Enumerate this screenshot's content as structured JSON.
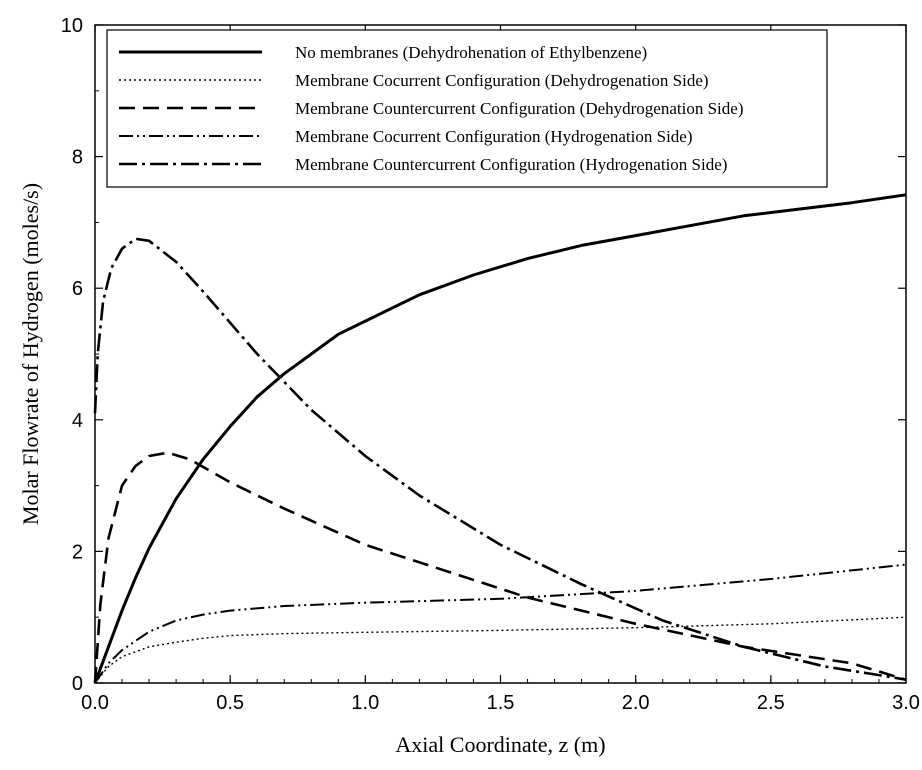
{
  "chart_data": {
    "type": "line",
    "xlabel": "Axial Coordinate, z (m)",
    "ylabel": "Molar Flowrate of Hydrogen (moles/s)",
    "xlim": [
      0,
      3
    ],
    "ylim": [
      0,
      10
    ],
    "x_ticks": [
      "0.0",
      "0.5",
      "1.0",
      "1.5",
      "2.0",
      "2.5",
      "3.0"
    ],
    "y_ticks": [
      "0",
      "2",
      "4",
      "6",
      "8",
      "10"
    ],
    "grid": false,
    "legend_position": "top",
    "series": [
      {
        "name": "No membranes (Dehydrohenation of Ethylbenzene)",
        "style": "solid",
        "x": [
          0,
          0.05,
          0.1,
          0.15,
          0.2,
          0.3,
          0.4,
          0.5,
          0.6,
          0.7,
          0.8,
          0.9,
          1.0,
          1.2,
          1.4,
          1.6,
          1.8,
          2.0,
          2.2,
          2.4,
          2.6,
          2.8,
          3.0
        ],
        "y": [
          0,
          0.55,
          1.1,
          1.6,
          2.05,
          2.8,
          3.4,
          3.9,
          4.35,
          4.7,
          5.0,
          5.3,
          5.5,
          5.9,
          6.2,
          6.45,
          6.65,
          6.8,
          6.95,
          7.1,
          7.2,
          7.3,
          7.42
        ]
      },
      {
        "name": "Membrane Cocurrent Configuration (Dehydrogenation Side)",
        "style": "dotted",
        "x": [
          0,
          0.05,
          0.1,
          0.2,
          0.3,
          0.4,
          0.5,
          0.7,
          1.0,
          1.5,
          2.0,
          2.5,
          3.0
        ],
        "y": [
          0,
          0.25,
          0.4,
          0.55,
          0.62,
          0.68,
          0.72,
          0.75,
          0.77,
          0.8,
          0.84,
          0.9,
          1.0
        ]
      },
      {
        "name": "Membrane Countercurrent Configuration (Dehydrogenation Side)",
        "style": "dashed",
        "x": [
          0,
          0.02,
          0.05,
          0.1,
          0.15,
          0.2,
          0.27,
          0.35,
          0.5,
          0.7,
          1.0,
          1.3,
          1.6,
          2.0,
          2.4,
          2.8,
          3.0
        ],
        "y": [
          0,
          1.2,
          2.2,
          3.0,
          3.3,
          3.45,
          3.5,
          3.4,
          3.05,
          2.65,
          2.1,
          1.7,
          1.3,
          0.9,
          0.55,
          0.3,
          0.05
        ]
      },
      {
        "name": "Membrane Cocurrent Configuration (Hydrogenation Side)",
        "style": "dash-dot-dot",
        "x": [
          0,
          0.05,
          0.1,
          0.2,
          0.3,
          0.4,
          0.5,
          0.7,
          1.0,
          1.5,
          2.0,
          2.5,
          3.0
        ],
        "y": [
          0,
          0.3,
          0.5,
          0.78,
          0.95,
          1.04,
          1.1,
          1.17,
          1.22,
          1.28,
          1.4,
          1.58,
          1.8
        ]
      },
      {
        "name": "Membrane Countercurrent Configuration (Hydrogenation Side)",
        "style": "dash-dot",
        "x": [
          0,
          0.01,
          0.03,
          0.06,
          0.1,
          0.15,
          0.2,
          0.3,
          0.4,
          0.6,
          0.8,
          1.0,
          1.2,
          1.5,
          1.8,
          2.1,
          2.4,
          2.7,
          2.9,
          3.0
        ],
        "y": [
          4.1,
          5.0,
          5.8,
          6.3,
          6.6,
          6.75,
          6.72,
          6.4,
          5.95,
          5.0,
          4.15,
          3.45,
          2.85,
          2.1,
          1.5,
          0.95,
          0.55,
          0.25,
          0.12,
          0.05
        ]
      }
    ]
  }
}
